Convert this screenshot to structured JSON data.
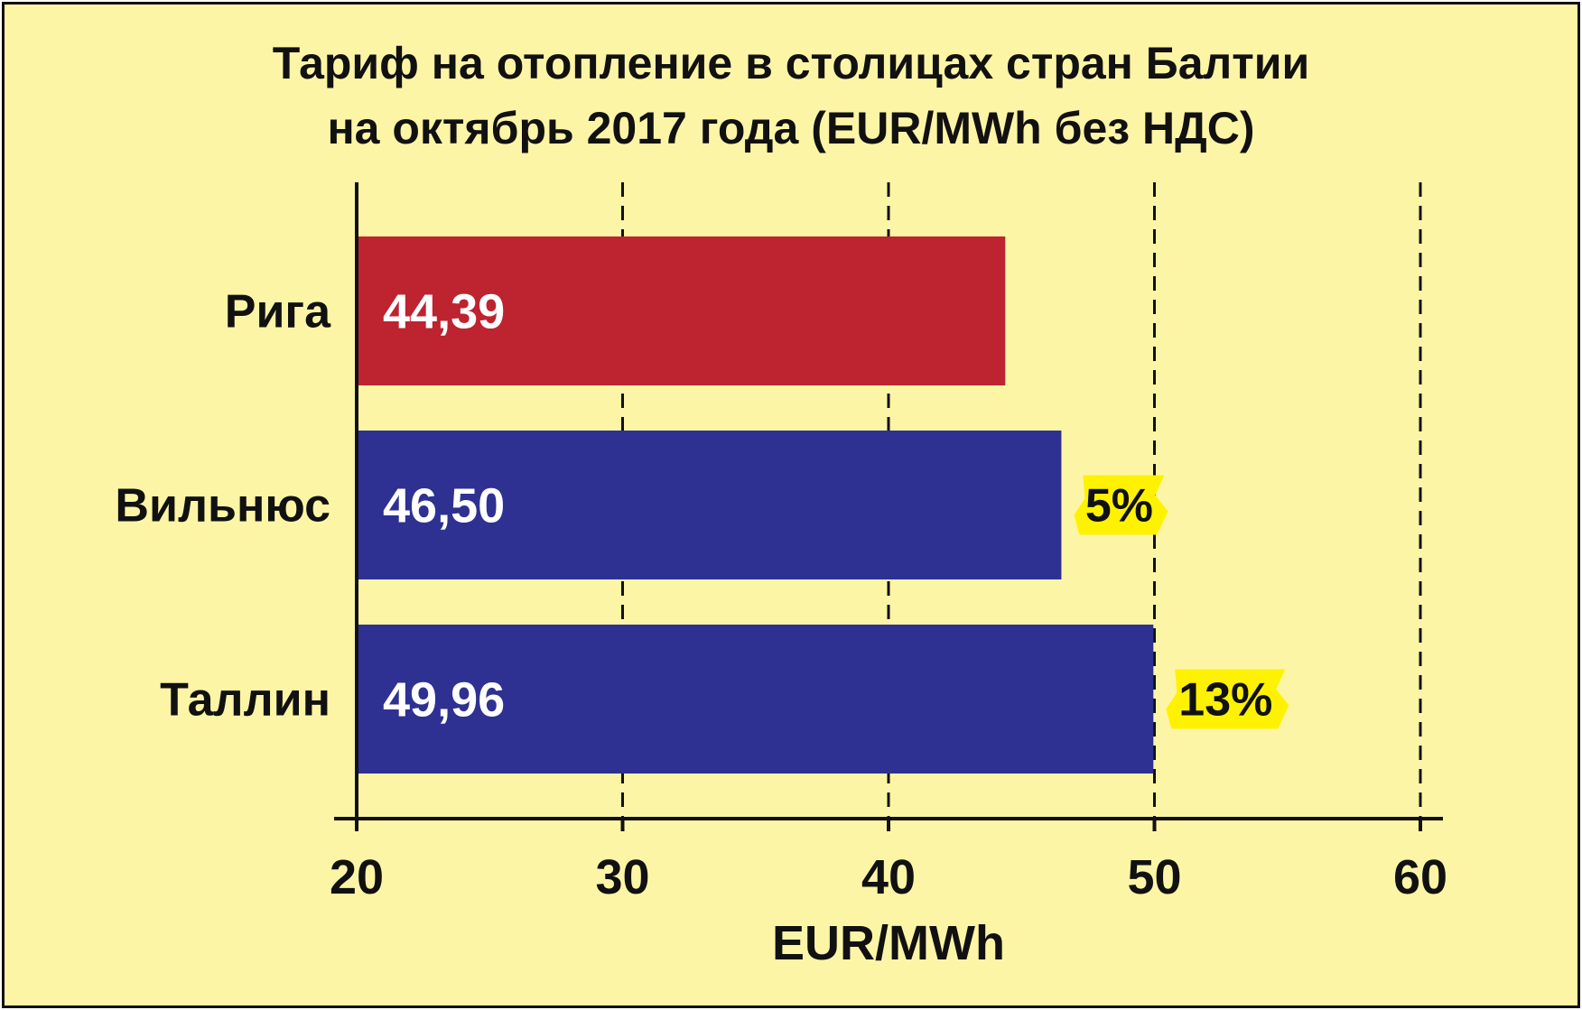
{
  "chart_data": {
    "type": "bar",
    "orientation": "horizontal",
    "title": [
      "Тариф на отопление в столицах стран Балтии",
      "на октябрь 2017 года (EUR/MWh без НДС)"
    ],
    "categories": [
      "Рига",
      "Вильнюс",
      "Таллин"
    ],
    "values": [
      44.39,
      46.5,
      49.96
    ],
    "value_labels": [
      "44,39",
      "46,50",
      "49,96"
    ],
    "bar_colors": [
      "#be2330",
      "#2e3192",
      "#2e3192"
    ],
    "annotations": [
      null,
      "5%",
      "13%"
    ],
    "annotation_color": "#fff200",
    "xlabel": "EUR/MWh",
    "ylabel": "",
    "xlim": [
      20,
      60
    ],
    "xticks": [
      20,
      30,
      40,
      50,
      60
    ],
    "xtick_labels": [
      "20",
      "30",
      "40",
      "50",
      "60"
    ],
    "grid": "vertical dashed",
    "background": "#fdf5a6"
  }
}
